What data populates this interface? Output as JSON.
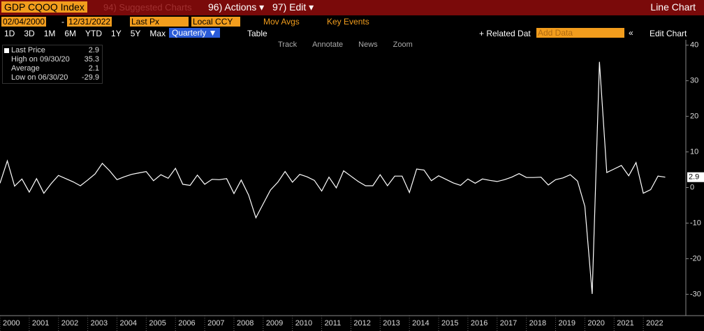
{
  "toolbar": {
    "ticker": "GDP CQOQ Index",
    "suggested": "94) Suggested Charts",
    "actions": "96) Actions ▾",
    "edit": "97) Edit ▾",
    "view": "Line Chart"
  },
  "controls": {
    "start": "02/04/2000",
    "dash": "-",
    "end": "12/31/2022",
    "field": "Last Px",
    "currency": "Local CCY",
    "mov_avgs": "Mov Avgs",
    "key_events": "Key Events"
  },
  "periods": [
    "1D",
    "3D",
    "1M",
    "6M",
    "YTD",
    "1Y",
    "5Y",
    "Max"
  ],
  "frequency": "Quarterly ▼",
  "table": "Table",
  "related": "+ Related Dat",
  "add_data": "Add Data",
  "collapse": "«",
  "edit_chart": "Edit Chart",
  "tools": [
    "Track",
    "Annotate",
    "News",
    "Zoom"
  ],
  "chart_data": {
    "type": "line",
    "series": [
      {
        "name": "Last Price",
        "color": "#ffffff",
        "values": [
          1.2,
          7.5,
          0.4,
          2.4,
          -1.3,
          2.5,
          -1.6,
          1.1,
          3.4,
          2.5,
          1.6,
          0.5,
          2.1,
          3.8,
          6.8,
          4.7,
          2.2,
          3.0,
          3.7,
          4.1,
          4.5,
          1.9,
          3.6,
          2.6,
          5.4,
          0.9,
          0.6,
          3.5,
          0.9,
          2.3,
          2.2,
          2.5,
          -1.7,
          2.1,
          -2.1,
          -8.5,
          -4.6,
          -0.7,
          1.5,
          4.5,
          1.5,
          3.7,
          3.0,
          2.0,
          -1.0,
          2.9,
          -0.1,
          4.7,
          3.2,
          1.7,
          0.5,
          0.5,
          3.6,
          0.5,
          3.2,
          3.2,
          -1.4,
          5.2,
          4.9,
          1.9,
          3.3,
          2.3,
          1.3,
          0.6,
          2.4,
          1.2,
          2.4,
          2.0,
          1.7,
          2.2,
          2.9,
          3.9,
          2.8,
          2.8,
          2.9,
          0.7,
          2.2,
          2.7,
          3.6,
          1.8,
          -5.3,
          -29.9,
          35.3,
          4.2,
          5.2,
          6.2,
          3.3,
          7.0,
          -1.6,
          -0.6,
          3.2,
          2.9
        ]
      }
    ],
    "x_labels": [
      "2000",
      "2001",
      "2002",
      "2003",
      "2004",
      "2005",
      "2006",
      "2007",
      "2008",
      "2009",
      "2010",
      "2011",
      "2012",
      "2013",
      "2014",
      "2015",
      "2016",
      "2017",
      "2018",
      "2019",
      "2020",
      "2021",
      "2022"
    ],
    "stats": {
      "high_label": "High on 09/30/20",
      "high": 35.3,
      "average_label": "Average",
      "average": 2.1,
      "low_label": "Low on 06/30/20",
      "low": -29.9
    },
    "ylim": [
      -36,
      41.5
    ],
    "yticks": [
      -30,
      -20,
      -10,
      0,
      10,
      20,
      30,
      40
    ]
  }
}
